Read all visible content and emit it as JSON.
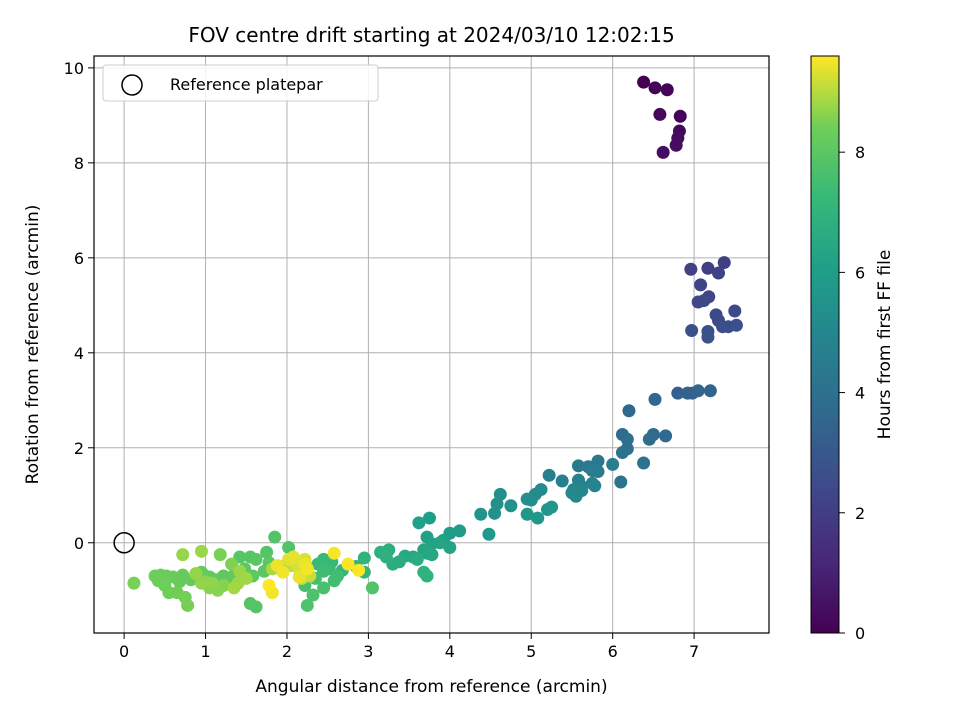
{
  "chart_data": {
    "type": "scatter",
    "title": "FOV centre drift starting at 2024/03/10 12:02:15",
    "xlabel": "Angular distance from reference (arcmin)",
    "ylabel": "Rotation from reference (arcmin)",
    "xlim": [
      -0.37,
      7.92
    ],
    "ylim": [
      -1.9,
      10.25
    ],
    "xticks": [
      0,
      1,
      2,
      3,
      4,
      5,
      6,
      7
    ],
    "yticks": [
      0,
      2,
      4,
      6,
      8,
      10
    ],
    "grid": true,
    "legend": {
      "position": "upper-left",
      "entries": [
        "Reference platepar"
      ]
    },
    "reference_point": {
      "x": 0,
      "y": 0
    },
    "colorbar": {
      "label": "Hours from first FF file",
      "range": [
        0,
        9.6
      ],
      "ticks": [
        0,
        2,
        4,
        6,
        8
      ],
      "colormap": "viridis"
    },
    "point_color": "hours",
    "point_fields": [
      "x",
      "y",
      "hours"
    ],
    "points": [
      [
        6.38,
        9.7,
        0.0
      ],
      [
        6.52,
        9.58,
        0.05
      ],
      [
        6.67,
        9.54,
        0.1
      ],
      [
        6.83,
        8.98,
        0.15
      ],
      [
        6.58,
        9.02,
        0.2
      ],
      [
        6.82,
        8.67,
        0.25
      ],
      [
        6.8,
        8.52,
        0.3
      ],
      [
        6.78,
        8.37,
        0.35
      ],
      [
        6.62,
        8.22,
        0.4
      ],
      [
        7.37,
        5.9,
        2.0
      ],
      [
        7.17,
        5.78,
        2.05
      ],
      [
        6.96,
        5.76,
        2.1
      ],
      [
        7.3,
        5.68,
        2.15
      ],
      [
        7.08,
        5.43,
        2.2
      ],
      [
        7.18,
        5.18,
        2.25
      ],
      [
        7.05,
        5.07,
        2.3
      ],
      [
        7.12,
        5.1,
        2.35
      ],
      [
        7.5,
        4.88,
        2.4
      ],
      [
        7.27,
        4.8,
        2.45
      ],
      [
        7.3,
        4.68,
        2.5
      ],
      [
        7.35,
        4.55,
        2.55
      ],
      [
        7.42,
        4.55,
        2.6
      ],
      [
        7.52,
        4.58,
        2.65
      ],
      [
        7.17,
        4.45,
        2.7
      ],
      [
        6.97,
        4.47,
        2.75
      ],
      [
        7.17,
        4.33,
        2.8
      ],
      [
        6.8,
        3.15,
        3.3
      ],
      [
        6.92,
        3.15,
        3.35
      ],
      [
        6.98,
        3.15,
        3.4
      ],
      [
        7.05,
        3.2,
        3.45
      ],
      [
        7.2,
        3.2,
        3.5
      ],
      [
        6.52,
        3.02,
        3.55
      ],
      [
        6.2,
        2.78,
        3.65
      ],
      [
        6.65,
        2.25,
        3.7
      ],
      [
        6.5,
        2.28,
        3.75
      ],
      [
        6.45,
        2.18,
        3.8
      ],
      [
        6.12,
        2.28,
        3.85
      ],
      [
        6.18,
        2.18,
        3.9
      ],
      [
        6.18,
        1.98,
        3.95
      ],
      [
        6.12,
        1.9,
        4.0
      ],
      [
        6.38,
        1.68,
        4.05
      ],
      [
        6.1,
        1.28,
        4.15
      ],
      [
        5.82,
        1.72,
        4.3
      ],
      [
        5.58,
        1.62,
        4.35
      ],
      [
        5.78,
        1.58,
        4.4
      ],
      [
        5.7,
        1.6,
        4.45
      ],
      [
        5.82,
        1.5,
        4.5
      ],
      [
        5.75,
        1.52,
        4.55
      ],
      [
        6.0,
        1.65,
        4.6
      ],
      [
        5.22,
        1.42,
        4.65
      ],
      [
        5.38,
        1.3,
        4.7
      ],
      [
        5.58,
        1.32,
        4.75
      ],
      [
        5.6,
        1.22,
        4.8
      ],
      [
        5.75,
        1.25,
        4.85
      ],
      [
        5.78,
        1.2,
        4.9
      ],
      [
        5.52,
        1.12,
        4.95
      ],
      [
        5.62,
        1.1,
        5.0
      ],
      [
        5.5,
        1.05,
        5.05
      ],
      [
        5.55,
        0.98,
        5.1
      ],
      [
        5.12,
        1.12,
        5.15
      ],
      [
        5.05,
        1.02,
        5.2
      ],
      [
        5.0,
        0.9,
        5.25
      ],
      [
        4.95,
        0.92,
        5.3
      ],
      [
        4.62,
        1.02,
        5.35
      ],
      [
        4.75,
        0.78,
        5.4
      ],
      [
        4.58,
        0.82,
        5.45
      ],
      [
        4.55,
        0.62,
        5.5
      ],
      [
        4.38,
        0.6,
        5.55
      ],
      [
        5.25,
        0.75,
        5.6
      ],
      [
        5.2,
        0.7,
        5.65
      ],
      [
        4.95,
        0.6,
        5.7
      ],
      [
        5.08,
        0.52,
        5.75
      ],
      [
        4.48,
        0.18,
        5.8
      ],
      [
        4.12,
        0.25,
        5.9
      ],
      [
        4.0,
        0.2,
        5.95
      ],
      [
        3.92,
        0.05,
        6.0
      ],
      [
        3.75,
        0.52,
        6.05
      ],
      [
        3.62,
        0.42,
        6.1
      ],
      [
        3.72,
        0.12,
        6.15
      ],
      [
        3.78,
        -0.02,
        6.2
      ],
      [
        3.88,
        0.0,
        6.25
      ],
      [
        4.0,
        -0.1,
        6.3
      ],
      [
        3.68,
        -0.15,
        6.35
      ],
      [
        3.72,
        -0.22,
        6.4
      ],
      [
        3.78,
        -0.25,
        6.45
      ],
      [
        3.55,
        -0.3,
        6.5
      ],
      [
        3.45,
        -0.28,
        6.55
      ],
      [
        3.6,
        -0.35,
        6.6
      ],
      [
        3.38,
        -0.4,
        6.65
      ],
      [
        3.3,
        -0.45,
        6.7
      ],
      [
        3.25,
        -0.15,
        6.75
      ],
      [
        3.15,
        -0.2,
        6.8
      ],
      [
        3.22,
        -0.3,
        6.85
      ],
      [
        3.68,
        -0.62,
        6.9
      ],
      [
        3.72,
        -0.7,
        6.95
      ],
      [
        2.95,
        -0.32,
        7.0
      ],
      [
        2.85,
        -0.5,
        7.05
      ],
      [
        2.95,
        -0.62,
        7.1
      ],
      [
        2.68,
        -0.58,
        7.15
      ],
      [
        2.55,
        -0.4,
        7.2
      ],
      [
        2.45,
        -0.35,
        7.25
      ],
      [
        2.38,
        -0.45,
        7.3
      ],
      [
        2.52,
        -0.55,
        7.35
      ],
      [
        2.45,
        -0.6,
        7.4
      ],
      [
        2.62,
        -0.7,
        7.45
      ],
      [
        2.58,
        -0.8,
        7.5
      ],
      [
        2.35,
        -0.75,
        7.55
      ],
      [
        2.22,
        -0.9,
        7.6
      ],
      [
        2.45,
        -0.95,
        7.65
      ],
      [
        2.32,
        -1.1,
        7.7
      ],
      [
        2.25,
        -1.32,
        7.75
      ],
      [
        3.05,
        -0.95,
        7.8
      ],
      [
        1.85,
        0.12,
        7.82
      ],
      [
        2.02,
        -0.1,
        7.84
      ],
      [
        1.75,
        -0.2,
        7.86
      ],
      [
        1.55,
        -1.28,
        7.88
      ],
      [
        1.62,
        -1.35,
        7.9
      ],
      [
        1.42,
        -0.3,
        7.92
      ],
      [
        1.55,
        -0.3,
        7.94
      ],
      [
        1.62,
        -0.35,
        7.96
      ],
      [
        1.78,
        -0.42,
        7.98
      ],
      [
        1.72,
        -0.6,
        8.0
      ],
      [
        1.48,
        -0.55,
        8.02
      ],
      [
        1.58,
        -0.7,
        8.04
      ],
      [
        1.35,
        -0.68,
        8.06
      ],
      [
        1.3,
        -0.75,
        8.08
      ],
      [
        1.22,
        -0.7,
        8.1
      ],
      [
        1.12,
        -0.78,
        8.12
      ],
      [
        1.05,
        -0.72,
        8.14
      ],
      [
        0.98,
        -0.68,
        8.16
      ],
      [
        0.95,
        -0.62,
        8.18
      ],
      [
        0.88,
        -0.72,
        8.2
      ],
      [
        0.82,
        -0.78,
        8.22
      ],
      [
        0.72,
        -0.68,
        8.24
      ],
      [
        0.68,
        -0.82,
        8.26
      ],
      [
        0.6,
        -0.72,
        8.28
      ],
      [
        0.52,
        -0.7,
        8.3
      ],
      [
        0.45,
        -0.68,
        8.32
      ],
      [
        0.38,
        -0.7,
        8.34
      ],
      [
        0.42,
        -0.8,
        8.36
      ],
      [
        0.5,
        -0.9,
        8.38
      ],
      [
        0.55,
        -1.05,
        8.4
      ],
      [
        0.65,
        -1.05,
        8.42
      ],
      [
        0.75,
        -1.15,
        8.44
      ],
      [
        0.78,
        -1.32,
        8.46
      ],
      [
        0.12,
        -0.85,
        8.48
      ],
      [
        1.18,
        -0.25,
        8.5
      ],
      [
        1.32,
        -0.45,
        8.55
      ],
      [
        1.22,
        -0.9,
        8.6
      ],
      [
        1.15,
        -1.0,
        8.62
      ],
      [
        1.05,
        -0.95,
        8.64
      ],
      [
        1.0,
        -0.82,
        8.66
      ],
      [
        1.08,
        -0.85,
        8.68
      ],
      [
        0.95,
        -0.85,
        8.7
      ],
      [
        0.88,
        -0.65,
        8.72
      ],
      [
        0.72,
        -0.25,
        8.74
      ],
      [
        0.95,
        -0.18,
        8.76
      ],
      [
        1.42,
        -0.6,
        8.78
      ],
      [
        1.4,
        -0.85,
        8.8
      ],
      [
        1.5,
        -0.75,
        8.82
      ],
      [
        1.35,
        -0.95,
        8.84
      ],
      [
        1.82,
        -0.55,
        8.9
      ],
      [
        1.95,
        -0.5,
        8.95
      ],
      [
        2.05,
        -0.48,
        9.0
      ],
      [
        2.15,
        -0.55,
        9.05
      ],
      [
        2.22,
        -0.62,
        9.1
      ],
      [
        2.28,
        -0.7,
        9.15
      ],
      [
        2.18,
        -0.75,
        9.2
      ],
      [
        2.12,
        -0.48,
        9.25
      ],
      [
        2.22,
        -0.35,
        9.3
      ],
      [
        2.02,
        -0.35,
        9.35
      ],
      [
        2.08,
        -0.3,
        9.4
      ],
      [
        2.15,
        -0.72,
        9.42
      ],
      [
        2.22,
        -0.45,
        9.44
      ],
      [
        1.88,
        -0.48,
        9.46
      ],
      [
        1.82,
        -1.05,
        9.48
      ],
      [
        1.95,
        -0.62,
        9.5
      ],
      [
        2.25,
        -0.55,
        9.52
      ],
      [
        2.58,
        -0.22,
        9.54
      ],
      [
        2.75,
        -0.45,
        9.56
      ],
      [
        2.88,
        -0.58,
        9.58
      ],
      [
        1.78,
        -0.9,
        9.6
      ]
    ]
  }
}
